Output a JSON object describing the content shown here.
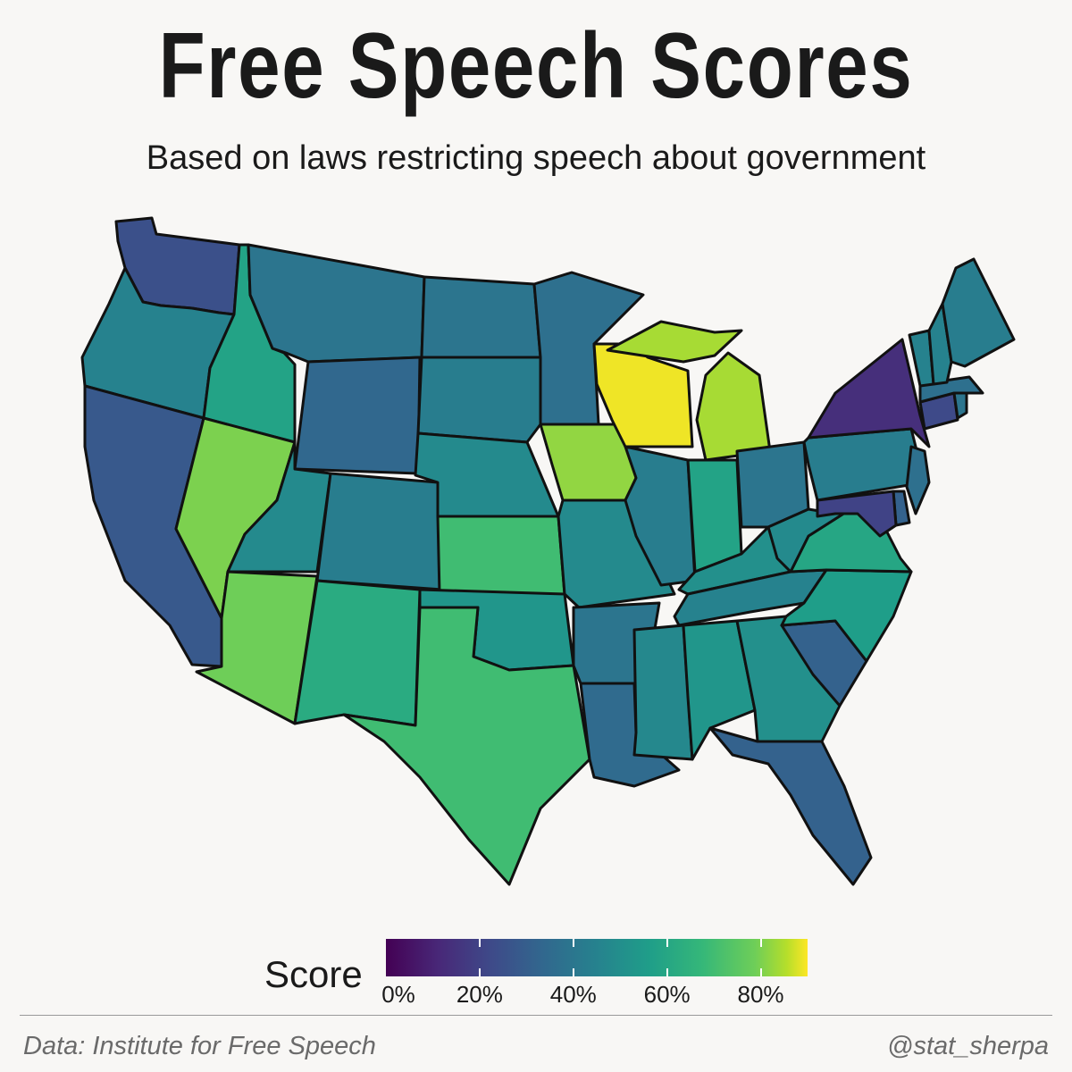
{
  "title": "Free Speech Scores",
  "subtitle": "Based on laws restricting speech about government",
  "chart_data": {
    "type": "choropleth",
    "measure": "Score",
    "unit": "percent",
    "colorscale": "viridis",
    "range": [
      0,
      90
    ],
    "states": [
      {
        "id": "WA",
        "value": 22
      },
      {
        "id": "OR",
        "value": 40
      },
      {
        "id": "CA",
        "value": 25
      },
      {
        "id": "ID",
        "value": 52
      },
      {
        "id": "NV",
        "value": 72
      },
      {
        "id": "MT",
        "value": 35
      },
      {
        "id": "WY",
        "value": 30
      },
      {
        "id": "UT",
        "value": 43
      },
      {
        "id": "AZ",
        "value": 70
      },
      {
        "id": "CO",
        "value": 38
      },
      {
        "id": "NM",
        "value": 55
      },
      {
        "id": "ND",
        "value": 35
      },
      {
        "id": "SD",
        "value": 38
      },
      {
        "id": "NE",
        "value": 43
      },
      {
        "id": "KS",
        "value": 62
      },
      {
        "id": "OK",
        "value": 47
      },
      {
        "id": "TX",
        "value": 62
      },
      {
        "id": "MN",
        "value": 33
      },
      {
        "id": "IA",
        "value": 75
      },
      {
        "id": "MO",
        "value": 43
      },
      {
        "id": "AR",
        "value": 35
      },
      {
        "id": "LA",
        "value": 31
      },
      {
        "id": "WI",
        "value": 88
      },
      {
        "id": "IL",
        "value": 38
      },
      {
        "id": "MI",
        "value": 78
      },
      {
        "id": "IN",
        "value": 52
      },
      {
        "id": "OH",
        "value": 35
      },
      {
        "id": "KY",
        "value": 45
      },
      {
        "id": "TN",
        "value": 40
      },
      {
        "id": "MS",
        "value": 42
      },
      {
        "id": "AL",
        "value": 47
      },
      {
        "id": "GA",
        "value": 45
      },
      {
        "id": "FL",
        "value": 28
      },
      {
        "id": "SC",
        "value": 28
      },
      {
        "id": "NC",
        "value": 50
      },
      {
        "id": "VA",
        "value": 53
      },
      {
        "id": "WV",
        "value": 43
      },
      {
        "id": "PA",
        "value": 38
      },
      {
        "id": "NY",
        "value": 12
      },
      {
        "id": "NJ",
        "value": 33
      },
      {
        "id": "DE",
        "value": 28
      },
      {
        "id": "MD",
        "value": 18
      },
      {
        "id": "CT",
        "value": 20
      },
      {
        "id": "RI",
        "value": 35
      },
      {
        "id": "MA",
        "value": 33
      },
      {
        "id": "VT",
        "value": 40
      },
      {
        "id": "NH",
        "value": 40
      },
      {
        "id": "ME",
        "value": 38
      }
    ]
  },
  "legend": {
    "title": "Score",
    "ticks": [
      "0%",
      "20%",
      "40%",
      "60%",
      "80%"
    ],
    "tick_values": [
      0,
      20,
      40,
      60,
      80
    ],
    "min": 0,
    "max": 90
  },
  "footer": {
    "source": "Data: Institute for Free Speech",
    "credit": "@stat_sherpa"
  }
}
